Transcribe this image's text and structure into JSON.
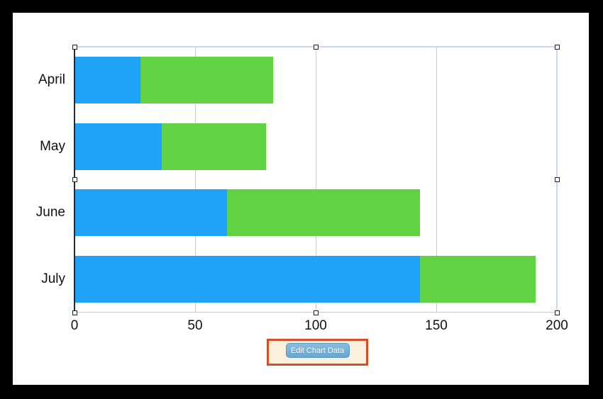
{
  "canvas": {
    "background": "#ffffff",
    "frame_background": "#000000"
  },
  "chart_data": {
    "type": "bar",
    "orientation": "horizontal",
    "stacked": true,
    "title": "",
    "categories": [
      "April",
      "May",
      "June",
      "July"
    ],
    "series": [
      {
        "name": "blue",
        "color": "#1FA3F6",
        "values": [
          27,
          36,
          63,
          143
        ]
      },
      {
        "name": "green",
        "color": "#60D244",
        "values": [
          55,
          43,
          80,
          48
        ]
      }
    ],
    "category_totals": [
      82,
      79,
      143,
      191
    ],
    "x_ticks": [
      0,
      50,
      100,
      150,
      200
    ],
    "xlim": [
      0,
      200
    ],
    "xlabel": "",
    "ylabel": "",
    "grid": "vertical-gridlines",
    "legend_position": "none",
    "axis_text_color": "#111111"
  },
  "selection": {
    "border_color": "#CCD8F2",
    "handle_fill": "#FFFFFF",
    "handle_border": "#222222"
  },
  "edit_button": {
    "label": "Edit Chart Data"
  },
  "annotation_box": {
    "border_color": "#D4502D",
    "fill_color": "#FAF0DB"
  }
}
